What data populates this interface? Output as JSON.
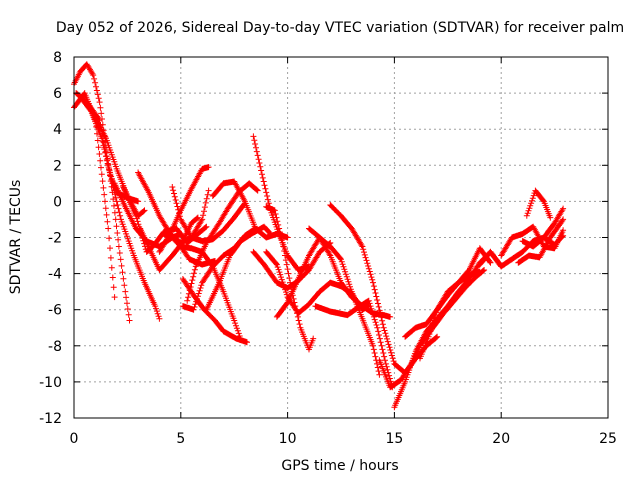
{
  "chart_data": {
    "type": "scatter",
    "title": "Day 052 of 2026, Sidereal Day-to-day VTEC variation (SDTVAR) for receiver palm",
    "xlabel": "GPS time / hours",
    "ylabel": "SDTVAR / TECUs",
    "xlim": [
      0,
      25
    ],
    "ylim": [
      -12,
      8
    ],
    "xticks": [
      0,
      5,
      10,
      15,
      20,
      25
    ],
    "yticks": [
      -12,
      -10,
      -8,
      -6,
      -4,
      -2,
      0,
      2,
      4,
      6,
      8
    ],
    "grid": true,
    "legend": "none",
    "marker": "plus",
    "color": "#ff0000",
    "series": [
      {
        "name": "track-1",
        "x": [
          0.0,
          0.3,
          0.6,
          0.9,
          1.2,
          1.5,
          1.8,
          2.1,
          2.4,
          2.6
        ],
        "y": [
          6.5,
          7.2,
          7.6,
          7.0,
          5.5,
          3.0,
          0.5,
          -2.5,
          -5.0,
          -6.6
        ]
      },
      {
        "name": "track-2",
        "x": [
          0.0,
          0.5,
          1.0,
          1.3,
          1.6,
          1.9
        ],
        "y": [
          5.2,
          6.0,
          4.5,
          1.5,
          -1.5,
          -5.3
        ]
      },
      {
        "name": "track-3",
        "x": [
          0.1,
          0.6,
          1.2,
          1.6,
          2.2,
          2.8,
          3.3,
          3.8,
          4.0
        ],
        "y": [
          6.0,
          5.5,
          4.5,
          2.0,
          -1.0,
          -3.0,
          -4.5,
          -5.8,
          -6.5
        ]
      },
      {
        "name": "track-4",
        "x": [
          0.3,
          0.8,
          1.3,
          1.7,
          2.0,
          2.5,
          3.0
        ],
        "y": [
          5.8,
          5.0,
          3.5,
          1.5,
          0.5,
          0.2,
          0.0
        ]
      },
      {
        "name": "track-5",
        "x": [
          1.0,
          1.5,
          2.0,
          2.5,
          3.0,
          3.3
        ],
        "y": [
          4.6,
          3.5,
          1.8,
          0.3,
          -0.8,
          -0.5
        ]
      },
      {
        "name": "track-6",
        "x": [
          1.9,
          2.4,
          2.9,
          3.4,
          4.0,
          4.6,
          5.0
        ],
        "y": [
          1.0,
          -0.3,
          -1.5,
          -2.2,
          -2.5,
          -2.0,
          -1.8
        ]
      },
      {
        "name": "track-7",
        "x": [
          2.3,
          2.9,
          3.4,
          3.7,
          4.2,
          4.8,
          5.3,
          5.8,
          6.2
        ],
        "y": [
          0.8,
          -0.8,
          -2.8,
          -2.5,
          -1.7,
          -1.5,
          -2.3,
          -1.8,
          -1.4
        ]
      },
      {
        "name": "track-8",
        "x": [
          3.0,
          3.5,
          4.0,
          4.5,
          5.0,
          5.5,
          6.0,
          6.3
        ],
        "y": [
          1.6,
          0.5,
          -0.8,
          -1.8,
          -2.3,
          -2.0,
          -1.0,
          0.6
        ]
      },
      {
        "name": "track-9",
        "x": [
          3.1,
          3.6,
          4.0,
          4.6,
          5.0,
          5.5,
          5.8
        ],
        "y": [
          -1.5,
          -2.8,
          -3.8,
          -3.0,
          -2.4,
          -1.2,
          -0.9
        ]
      },
      {
        "name": "track-10",
        "x": [
          4.0,
          4.5,
          5.0,
          5.5,
          6.0,
          6.3
        ],
        "y": [
          -2.8,
          -1.8,
          -0.5,
          0.7,
          1.8,
          1.9
        ]
      },
      {
        "name": "track-11",
        "x": [
          4.2,
          4.6,
          5.0,
          5.4,
          6.0,
          6.6
        ],
        "y": [
          -1.8,
          -2.0,
          -2.5,
          -3.2,
          -3.5,
          -3.3
        ]
      },
      {
        "name": "track-12",
        "x": [
          4.6,
          5.0,
          5.5,
          6.0,
          6.5,
          7.0,
          7.5,
          8.0
        ],
        "y": [
          0.8,
          -1.0,
          -2.0,
          -2.2,
          -2.1,
          -1.6,
          -0.9,
          -0.1
        ]
      },
      {
        "name": "track-13",
        "x": [
          5.0,
          5.5,
          6.0,
          6.5,
          7.0,
          7.5,
          7.8
        ],
        "y": [
          -2.5,
          -2.6,
          -2.8,
          -3.6,
          -5.0,
          -6.6,
          -7.6
        ]
      },
      {
        "name": "track-14",
        "x": [
          5.1,
          5.6,
          6.1,
          6.6,
          7.0,
          7.6,
          8.1
        ],
        "y": [
          -4.3,
          -5.2,
          -6.0,
          -6.6,
          -7.2,
          -7.6,
          -7.8
        ]
      },
      {
        "name": "track-15",
        "x": [
          5.3,
          5.7,
          6.2,
          6.8,
          7.2,
          7.7,
          8.2,
          8.6
        ],
        "y": [
          -5.5,
          -3.6,
          -2.3,
          -1.2,
          -0.4,
          0.5,
          1.0,
          0.6
        ]
      },
      {
        "name": "track-16",
        "x": [
          5.1,
          5.6,
          6.0,
          6.5,
          7.0,
          7.5,
          8.0,
          8.5
        ],
        "y": [
          -5.8,
          -6.0,
          -4.5,
          -3.6,
          -3.0,
          -2.6,
          -1.9,
          -1.5
        ]
      },
      {
        "name": "track-17",
        "x": [
          6.2,
          6.8,
          7.3,
          7.8,
          8.3,
          8.9,
          9.2
        ],
        "y": [
          -6.0,
          -4.5,
          -3.0,
          -2.2,
          -1.8,
          -1.4,
          -1.8
        ]
      },
      {
        "name": "track-18",
        "x": [
          6.5,
          7.0,
          7.5,
          8.0,
          8.5,
          9.0,
          9.5,
          10.0
        ],
        "y": [
          0.3,
          1.0,
          1.1,
          0.0,
          -1.5,
          -2.0,
          -1.8,
          -2.0
        ]
      },
      {
        "name": "track-19",
        "x": [
          8.4,
          8.8,
          9.2,
          9.6,
          10.0,
          10.5,
          11.0
        ],
        "y": [
          3.6,
          1.5,
          -0.5,
          -1.8,
          -3.0,
          -3.8,
          -3.6
        ]
      },
      {
        "name": "track-20",
        "x": [
          8.4,
          8.9,
          9.5,
          10.0,
          10.5,
          11.0,
          11.5,
          12.0
        ],
        "y": [
          -2.8,
          -3.5,
          -4.5,
          -4.8,
          -4.4,
          -3.8,
          -2.8,
          -2.3
        ]
      },
      {
        "name": "track-21",
        "x": [
          9.0,
          9.5,
          10.0,
          10.5,
          11.0,
          11.5,
          12.0,
          12.5,
          13.0,
          13.5,
          13.8
        ],
        "y": [
          -2.8,
          -3.5,
          -5.3,
          -6.2,
          -5.7,
          -5.0,
          -4.5,
          -4.7,
          -5.1,
          -6.0,
          -5.8
        ]
      },
      {
        "name": "track-22",
        "x": [
          9.0,
          9.4,
          9.8,
          10.2,
          10.6,
          11.0,
          11.2
        ],
        "y": [
          -0.3,
          -0.5,
          -2.5,
          -5.0,
          -7.0,
          -8.2,
          -7.6
        ]
      },
      {
        "name": "track-23",
        "x": [
          9.5,
          10.0,
          10.5,
          11.0,
          11.5,
          12.0,
          12.5,
          13.0,
          13.5,
          14.0,
          14.3
        ],
        "y": [
          -6.4,
          -5.6,
          -4.3,
          -3.0,
          -2.0,
          -2.5,
          -3.2,
          -5.0,
          -6.5,
          -8.0,
          -9.6
        ]
      },
      {
        "name": "track-24",
        "x": [
          11.0,
          11.5,
          12.0,
          12.5,
          13.0,
          13.5,
          14.0,
          14.5,
          14.8
        ],
        "y": [
          -1.5,
          -2.0,
          -3.0,
          -4.5,
          -5.3,
          -5.8,
          -6.2,
          -6.3,
          -6.4
        ]
      },
      {
        "name": "track-25",
        "x": [
          11.3,
          12.0,
          12.8,
          13.4,
          13.8,
          14.2,
          14.6,
          14.9
        ],
        "y": [
          -5.8,
          -6.1,
          -6.3,
          -5.8,
          -5.5,
          -7.0,
          -9.0,
          -10.3
        ]
      },
      {
        "name": "track-26",
        "x": [
          12.0,
          12.5,
          13.0,
          13.5,
          14.0,
          14.5,
          15.0,
          15.5,
          16.0,
          16.5,
          17.0
        ],
        "y": [
          -0.2,
          -0.8,
          -1.5,
          -2.5,
          -4.5,
          -7.0,
          -9.0,
          -9.5,
          -8.7,
          -8.0,
          -7.5
        ]
      },
      {
        "name": "track-27",
        "x": [
          14.3,
          14.8,
          15.3,
          15.8,
          16.2,
          16.8,
          17.3,
          17.8,
          18.3,
          18.8,
          19.2
        ],
        "y": [
          -8.8,
          -10.3,
          -9.9,
          -9.0,
          -8.0,
          -7.0,
          -6.2,
          -5.5,
          -4.8,
          -4.2,
          -3.8
        ]
      },
      {
        "name": "track-28",
        "x": [
          15.0,
          15.5,
          16.0,
          16.5,
          17.0,
          17.5,
          18.0,
          18.5,
          19.0,
          19.5,
          20.0
        ],
        "y": [
          -11.4,
          -10.0,
          -8.3,
          -7.2,
          -6.5,
          -5.8,
          -5.0,
          -4.3,
          -3.4,
          -2.8,
          -3.6
        ]
      },
      {
        "name": "track-29",
        "x": [
          15.5,
          16.0,
          16.5,
          17.0,
          17.5,
          18.0,
          18.5,
          19.0,
          19.5
        ],
        "y": [
          -7.5,
          -7.0,
          -6.8,
          -6.0,
          -5.2,
          -4.5,
          -3.8,
          -2.6,
          -3.4
        ]
      },
      {
        "name": "track-30",
        "x": [
          16.2,
          16.6,
          17.0,
          17.5,
          18.0,
          18.5,
          19.0
        ],
        "y": [
          -8.7,
          -7.5,
          -6.0,
          -5.0,
          -4.5,
          -4.1,
          -3.9
        ]
      },
      {
        "name": "track-31",
        "x": [
          19.0,
          19.5,
          20.0,
          20.5,
          21.0,
          21.5,
          22.0,
          22.5,
          22.9
        ],
        "y": [
          -3.5,
          -2.8,
          -3.6,
          -3.2,
          -2.8,
          -2.2,
          -2.0,
          -1.2,
          -0.4
        ]
      },
      {
        "name": "track-32",
        "x": [
          20.0,
          20.5,
          21.0,
          21.5,
          22.0,
          22.5,
          22.9
        ],
        "y": [
          -3.0,
          -2.0,
          -1.8,
          -1.4,
          -2.5,
          -2.6,
          -1.6
        ]
      },
      {
        "name": "track-33",
        "x": [
          21.0,
          21.5,
          22.0,
          22.5,
          22.9
        ],
        "y": [
          -2.2,
          -2.5,
          -2.0,
          -2.4,
          -1.9
        ]
      },
      {
        "name": "track-34",
        "x": [
          21.2,
          21.6,
          22.0,
          22.3
        ],
        "y": [
          -0.8,
          0.6,
          0.0,
          -0.9
        ]
      },
      {
        "name": "track-35",
        "x": [
          20.8,
          21.3,
          21.8,
          22.3,
          22.9
        ],
        "y": [
          -3.4,
          -3.0,
          -3.1,
          -2.0,
          -1.0
        ]
      }
    ]
  }
}
